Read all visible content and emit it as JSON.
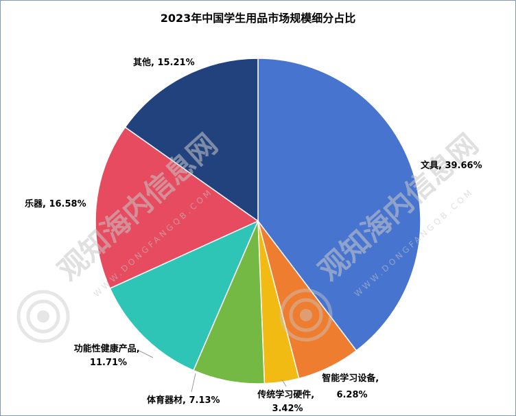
{
  "chart_data": {
    "type": "pie",
    "title": "2023年中国学生用品市场规模细分占比",
    "slices": [
      {
        "name": "文具",
        "value": 39.66,
        "label": "文具, 39.66%",
        "color": "#4774cf"
      },
      {
        "name": "智能学习设备",
        "value": 6.28,
        "label_lines": [
          "智能学习设备,",
          "6.28%"
        ],
        "color": "#ef7d30"
      },
      {
        "name": "传统学习硬件",
        "value": 3.42,
        "label_lines": [
          "传统学习硬件,",
          "3.42%"
        ],
        "color": "#f2bb13"
      },
      {
        "name": "体育器材",
        "value": 7.13,
        "label": "体育器材, 7.13%",
        "color": "#73b944"
      },
      {
        "name": "功能性健康产品",
        "value": 11.71,
        "label_lines": [
          "功能性健康产品,",
          "11.71%"
        ],
        "color": "#2ec4b6"
      },
      {
        "name": "乐器",
        "value": 16.58,
        "label": "乐器, 16.58%",
        "color": "#e64b5f"
      },
      {
        "name": "其他",
        "value": 15.21,
        "label": "其他, 15.21%",
        "color": "#22427e"
      }
    ]
  },
  "watermark": {
    "text": "观知海内信息网",
    "sub": "WWW.DONGFANGQB.COM",
    "icon": "eye-logo-icon"
  }
}
